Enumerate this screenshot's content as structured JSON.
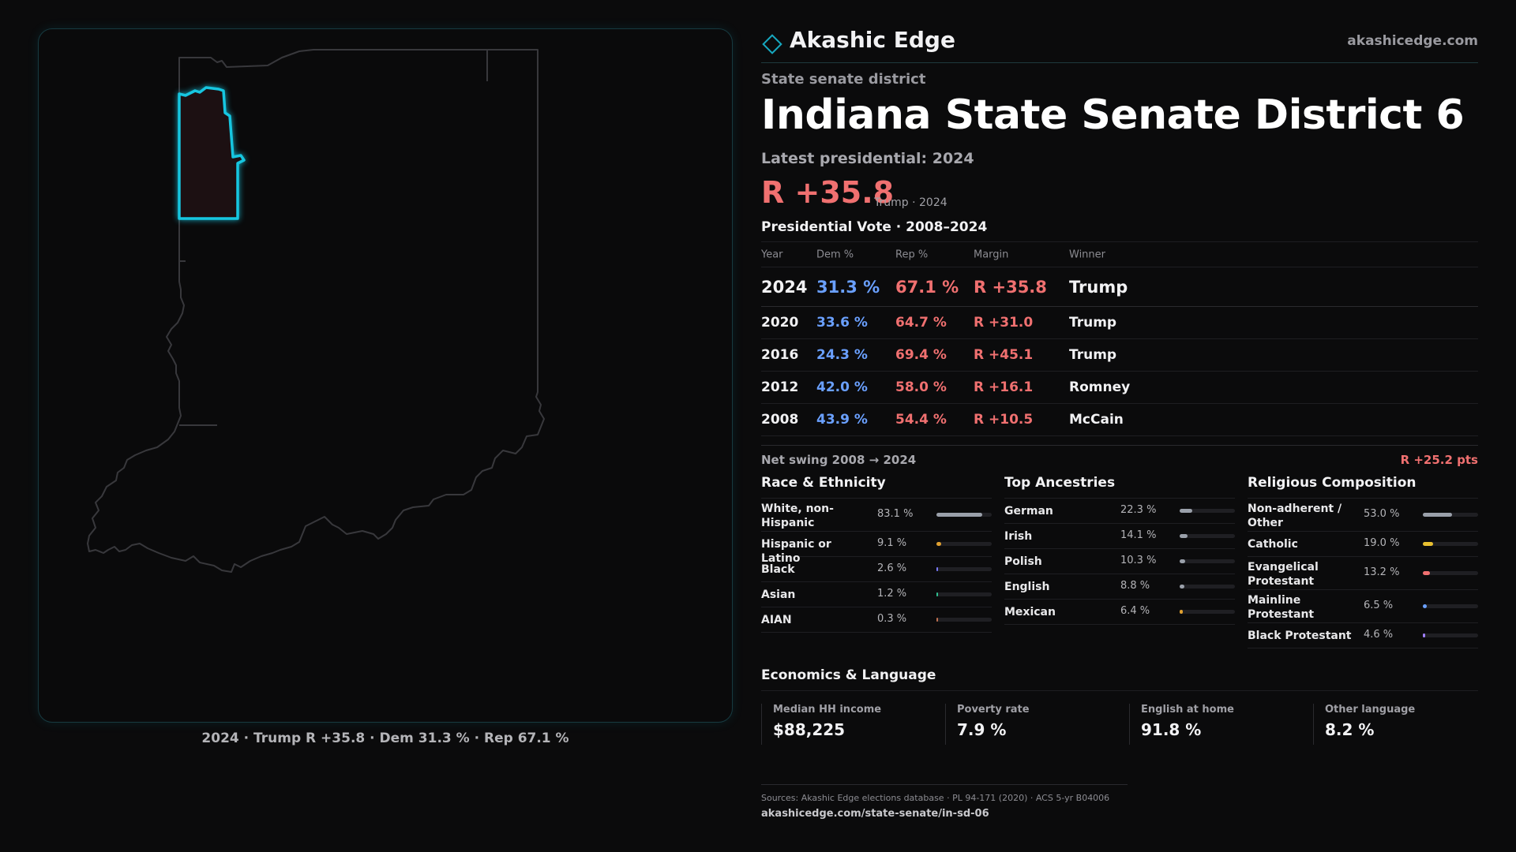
{
  "map": {
    "caption": "2024 · Trump R +35.8 · Dem 31.3 % · Rep 67.1 %",
    "outline_color": "#3a3a3e",
    "district_color": "#16c6e0",
    "district_fill": "#1c1012"
  },
  "brand": {
    "name": "Akashic Edge",
    "logo_icon": "diamond-icon",
    "url": "akashicedge.com",
    "accent": "#16a8c0"
  },
  "header": {
    "kicker": "State senate district",
    "title": "Indiana State Senate District 6",
    "latest": "Latest presidential: 2024",
    "margin": "R +35.8",
    "margin_sub": "Trump · 2024"
  },
  "presidential": {
    "title": "Presidential Vote · 2008–2024",
    "columns": [
      "Year",
      "Dem %",
      "Rep %",
      "Margin",
      "Winner"
    ],
    "rows": [
      {
        "year": "2024",
        "dem": "31.3 %",
        "rep": "67.1 %",
        "margin": "R +35.8",
        "winner": "Trump"
      },
      {
        "year": "2020",
        "dem": "33.6 %",
        "rep": "64.7 %",
        "margin": "R +31.0",
        "winner": "Trump"
      },
      {
        "year": "2016",
        "dem": "24.3 %",
        "rep": "69.4 %",
        "margin": "R +45.1",
        "winner": "Trump"
      },
      {
        "year": "2012",
        "dem": "42.0 %",
        "rep": "58.0 %",
        "margin": "R +16.1",
        "winner": "Romney"
      },
      {
        "year": "2008",
        "dem": "43.9 %",
        "rep": "54.4 %",
        "margin": "R +10.5",
        "winner": "McCain"
      }
    ],
    "swing_label": "Net swing 2008 → 2024",
    "swing_value": "R +25.2 pts"
  },
  "race": {
    "title": "Race & Ethnicity",
    "items": [
      {
        "label": "White, non-Hispanic",
        "value": "83.1 %",
        "pct": 83.1,
        "color": "#9aa0aa"
      },
      {
        "label": "Hispanic or Latino",
        "value": "9.1 %",
        "pct": 9.1,
        "color": "#e0a030"
      },
      {
        "label": "Black",
        "value": "2.6 %",
        "pct": 2.6,
        "color": "#7a7aff"
      },
      {
        "label": "Asian",
        "value": "1.2 %",
        "pct": 1.2,
        "color": "#30c090"
      },
      {
        "label": "AIAN",
        "value": "0.3 %",
        "pct": 0.3,
        "color": "#c07050"
      }
    ]
  },
  "ancestry": {
    "title": "Top Ancestries",
    "items": [
      {
        "label": "German",
        "value": "22.3 %",
        "pct": 22.3,
        "color": "#9aa0aa"
      },
      {
        "label": "Irish",
        "value": "14.1 %",
        "pct": 14.1,
        "color": "#9aa0aa"
      },
      {
        "label": "Polish",
        "value": "10.3 %",
        "pct": 10.3,
        "color": "#9aa0aa"
      },
      {
        "label": "English",
        "value": "8.8 %",
        "pct": 8.8,
        "color": "#9aa0aa"
      },
      {
        "label": "Mexican",
        "value": "6.4 %",
        "pct": 6.4,
        "color": "#e0a030"
      }
    ]
  },
  "religion": {
    "title": "Religious Composition",
    "items": [
      {
        "label": "Non-adherent / Other",
        "value": "53.0 %",
        "pct": 53.0,
        "color": "#9aa0aa"
      },
      {
        "label": "Catholic",
        "value": "19.0 %",
        "pct": 19.0,
        "color": "#e8c030"
      },
      {
        "label": "Evangelical Protestant",
        "value": "13.2 %",
        "pct": 13.2,
        "color": "#f07070"
      },
      {
        "label": "Mainline Protestant",
        "value": "6.5 %",
        "pct": 6.5,
        "color": "#6aa0ff"
      },
      {
        "label": "Black Protestant",
        "value": "4.6 %",
        "pct": 4.6,
        "color": "#a080ff"
      }
    ]
  },
  "economics": {
    "title": "Economics & Language",
    "cards": [
      {
        "label": "Median HH income",
        "value": "$88,225"
      },
      {
        "label": "Poverty rate",
        "value": "7.9 %"
      },
      {
        "label": "English at home",
        "value": "91.8 %"
      },
      {
        "label": "Other language",
        "value": "8.2 %"
      }
    ]
  },
  "sources": {
    "text": "Sources: Akashic Edge elections database · PL 94-171 (2020) · ACS 5-yr B04006",
    "url": "akashicedge.com/state-senate/in-sd-06"
  }
}
